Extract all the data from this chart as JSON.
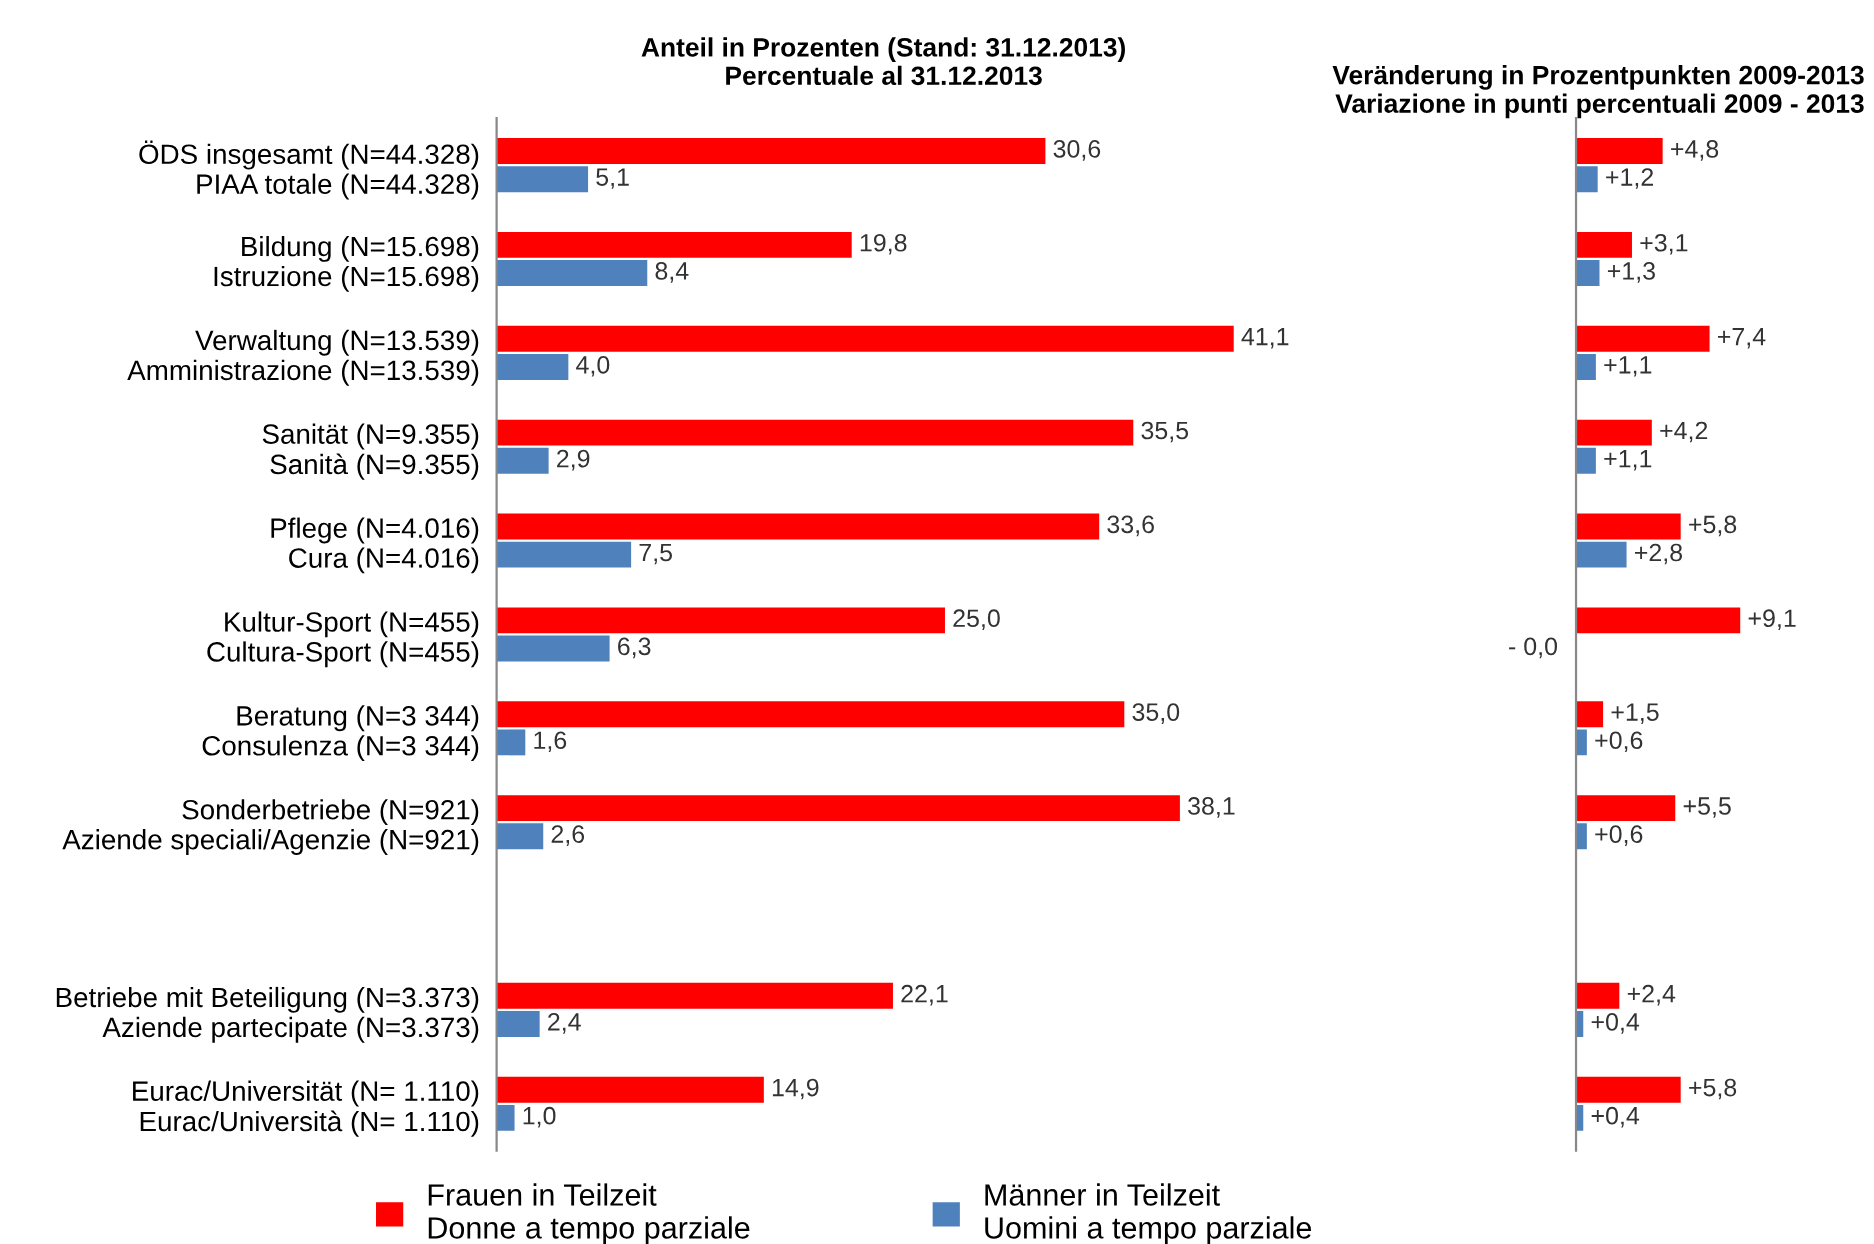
{
  "chart_data": [
    {
      "type": "bar",
      "orientation": "horizontal",
      "title": "Anteil in Prozenten (Stand: 31.12.2013)\nPercentuale al 31.12.2013",
      "categories": [
        "ÖDS insgesamt (N=44.328)\nPIAA totale (N=44.328)",
        "Bildung (N=15.698)\nIstruzione (N=15.698)",
        "Verwaltung (N=13.539)\nAmministrazione (N=13.539)",
        "Sanität (N=9.355)\nSanità (N=9.355)",
        "Pflege (N=4.016)\nCura (N=4.016)",
        "Kultur-Sport (N=455)\nCultura-Sport (N=455)",
        "Beratung (N=3 344)\nConsulenza (N=3 344)",
        "Sonderbetriebe (N=921)\nAziende speciali/Agenzie (N=921)",
        null,
        "Betriebe mit Beteiligung (N=3.373)\nAziende partecipate (N=3.373)",
        "Eurac/Universität (N= 1.110)\nEurac/Università (N= 1.110)"
      ],
      "series": [
        {
          "name": "Frauen in Teilzeit\nDonne a tempo parziale",
          "color": "#ff0000",
          "values": [
            30.6,
            19.8,
            41.1,
            35.5,
            33.6,
            25.0,
            35.0,
            38.1,
            null,
            22.1,
            14.9
          ],
          "value_labels": [
            "30,6",
            "19,8",
            "41,1",
            "35,5",
            "33,6",
            "25,0",
            "35,0",
            "38,1",
            null,
            "22,1",
            "14,9"
          ]
        },
        {
          "name": "Männer in Teilzeit\nUomini a tempo parziale",
          "color": "#4f81bd",
          "values": [
            5.1,
            8.4,
            4.0,
            2.9,
            7.5,
            6.3,
            1.6,
            2.6,
            null,
            2.4,
            1.0
          ],
          "value_labels": [
            "5,1",
            "8,4",
            "4,0",
            "2,9",
            "7,5",
            "6,3",
            "1,6",
            "2,6",
            null,
            "2,4",
            "1,0"
          ]
        }
      ],
      "tick_labels": "y",
      "legend": "bottom",
      "grid": false
    },
    {
      "type": "bar",
      "orientation": "horizontal",
      "title": "Veränderung in Prozentpunkten 2009-2013\nVariazione in punti percentuali 2009 - 2013",
      "categories": [
        null,
        null,
        null,
        null,
        null,
        null,
        null,
        null,
        null,
        null,
        null
      ],
      "series": [
        {
          "color": "#ff0000",
          "values": [
            4.8,
            3.1,
            7.4,
            4.2,
            5.8,
            9.1,
            1.5,
            5.5,
            null,
            2.4,
            5.8
          ],
          "value_labels": [
            "+4,8",
            "+3,1",
            "+7,4",
            "+4,2",
            "+5,8",
            "+9,1",
            "+1,5",
            "+5,5",
            null,
            "+2,4",
            "+5,8"
          ]
        },
        {
          "color": "#4f81bd",
          "values": [
            1.2,
            1.3,
            1.1,
            1.1,
            2.8,
            0.0,
            0.6,
            0.6,
            null,
            0.4,
            0.4
          ],
          "value_labels": [
            "+1,2",
            "+1,3",
            "+1,1",
            "+1,1",
            "+2,8",
            "- 0,0",
            "+0,6",
            "+0,6",
            null,
            "+0,4",
            "+0,4"
          ]
        }
      ],
      "tick_labels": false,
      "grid": false
    }
  ]
}
